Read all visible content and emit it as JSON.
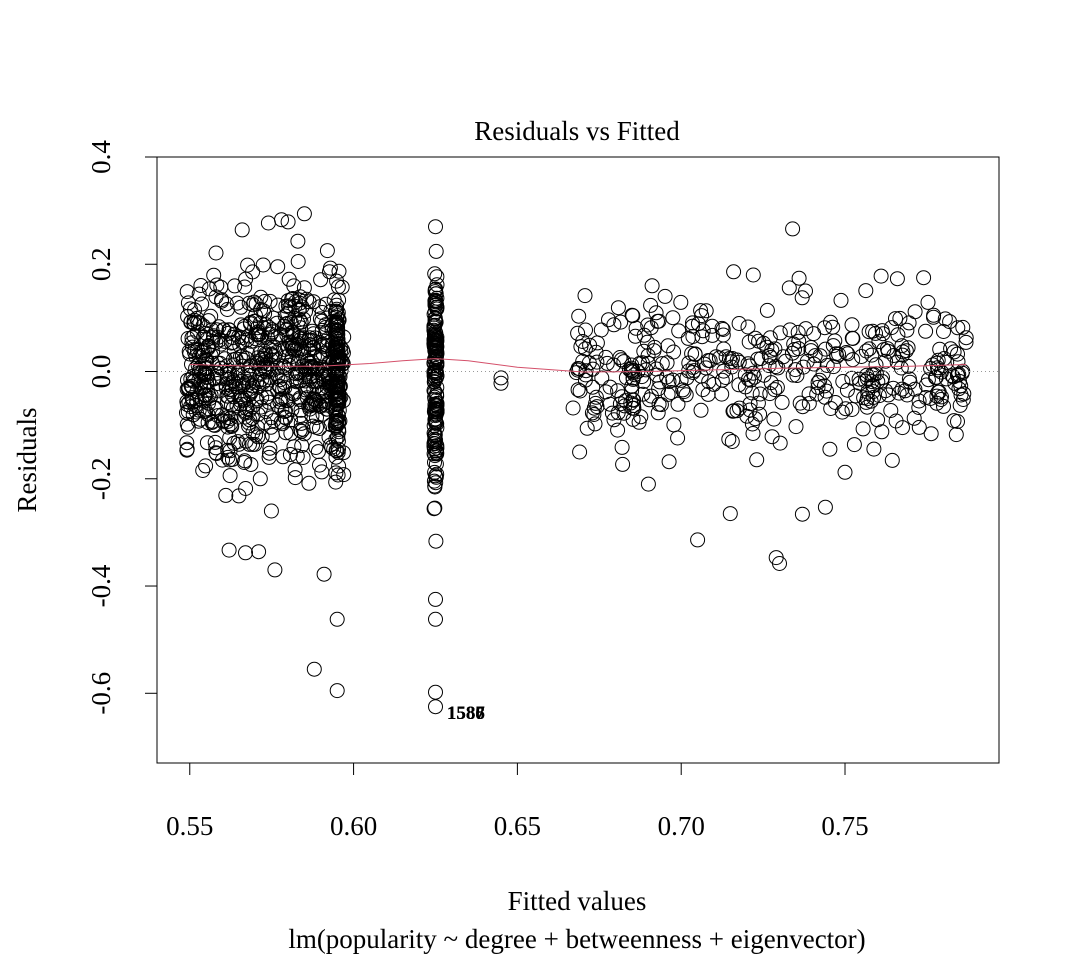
{
  "chart_data": {
    "type": "scatter",
    "title": "Residuals vs Fitted",
    "xlabel": "Fitted values",
    "subtitle": "lm(popularity ~ degree + betweenness + eigenvector)",
    "ylabel": "Residuals",
    "xlim": [
      0.54,
      0.797
    ],
    "ylim": [
      -0.73,
      0.4
    ],
    "x_ticks": [
      0.55,
      0.6,
      0.65,
      0.7,
      0.75
    ],
    "x_tick_labels": [
      "0.55",
      "0.60",
      "0.65",
      "0.70",
      "0.75"
    ],
    "y_ticks": [
      -0.6,
      -0.4,
      -0.2,
      0.0,
      0.2,
      0.4
    ],
    "y_tick_labels": [
      "-0.6",
      "-0.4",
      "-0.2",
      "0.0",
      "0.2",
      "0.4"
    ],
    "reference_line": {
      "y": 0,
      "style": "dotted",
      "color": "#999999"
    },
    "smoother": {
      "color": "#d4506a",
      "x": [
        0.55,
        0.57,
        0.59,
        0.605,
        0.615,
        0.625,
        0.635,
        0.65,
        0.67,
        0.69,
        0.71,
        0.73,
        0.75,
        0.77,
        0.787
      ],
      "y": [
        0.013,
        0.01,
        0.01,
        0.015,
        0.02,
        0.024,
        0.02,
        0.008,
        -0.001,
        0.0,
        0.003,
        0.006,
        0.008,
        0.01,
        0.013
      ]
    },
    "outlier_labels": [
      {
        "text": "1586",
        "x": 0.6285,
        "y": -0.637
      },
      {
        "text": "1587",
        "x": 0.6285,
        "y": -0.637
      },
      {
        "text": "1588",
        "x": 0.6285,
        "y": -0.637
      }
    ],
    "point_groups": [
      {
        "name": "g1",
        "x_range": [
          0.549,
          0.597
        ],
        "y_mean": 0.0,
        "y_sd": 0.12,
        "count": 700,
        "y_clip": [
          -0.38,
          0.3
        ]
      },
      {
        "name": "g2",
        "x_range": [
          0.5945,
          0.5955
        ],
        "y_mean": 0.0,
        "y_sd": 0.13,
        "count": 110,
        "y_clip": [
          -0.34,
          0.245
        ]
      },
      {
        "name": "g3",
        "x_range": [
          0.6245,
          0.6255
        ],
        "y_mean": 0.0,
        "y_sd": 0.14,
        "count": 170,
        "y_clip": [
          -0.39,
          0.27
        ]
      },
      {
        "name": "g4",
        "x_range": [
          0.668,
          0.787
        ],
        "y_mean": 0.0,
        "y_sd": 0.09,
        "count": 420,
        "y_clip": [
          -0.27,
          0.185
        ]
      },
      {
        "name": "g5",
        "x_range": [
          0.6845,
          0.6855
        ],
        "y_mean": -0.03,
        "y_sd": 0.05,
        "count": 12,
        "y_clip": [
          -0.12,
          0.03
        ]
      }
    ],
    "points": [
      {
        "x": 0.549,
        "y": -0.077
      },
      {
        "x": 0.553,
        "y": -0.002
      },
      {
        "x": 0.556,
        "y": 0.154
      },
      {
        "x": 0.558,
        "y": 0.221
      },
      {
        "x": 0.561,
        "y": -0.231
      },
      {
        "x": 0.562,
        "y": -0.333
      },
      {
        "x": 0.565,
        "y": -0.232
      },
      {
        "x": 0.566,
        "y": 0.264
      },
      {
        "x": 0.567,
        "y": -0.338
      },
      {
        "x": 0.571,
        "y": -0.336
      },
      {
        "x": 0.574,
        "y": 0.277
      },
      {
        "x": 0.576,
        "y": -0.37
      },
      {
        "x": 0.578,
        "y": 0.283
      },
      {
        "x": 0.58,
        "y": 0.279
      },
      {
        "x": 0.583,
        "y": 0.243
      },
      {
        "x": 0.585,
        "y": 0.294
      },
      {
        "x": 0.588,
        "y": -0.555
      },
      {
        "x": 0.591,
        "y": -0.378
      },
      {
        "x": 0.595,
        "y": -0.462
      },
      {
        "x": 0.595,
        "y": -0.595
      },
      {
        "x": 0.625,
        "y": -0.462
      },
      {
        "x": 0.625,
        "y": -0.425
      },
      {
        "x": 0.625,
        "y": -0.598
      },
      {
        "x": 0.625,
        "y": -0.625
      },
      {
        "x": 0.625,
        "y": 0.27
      },
      {
        "x": 0.645,
        "y": -0.012
      },
      {
        "x": 0.645,
        "y": -0.022
      },
      {
        "x": 0.667,
        "y": -0.068
      },
      {
        "x": 0.669,
        "y": -0.15
      },
      {
        "x": 0.674,
        "y": 0.036
      },
      {
        "x": 0.677,
        "y": -0.038
      },
      {
        "x": 0.685,
        "y": 0.105
      },
      {
        "x": 0.69,
        "y": -0.21
      },
      {
        "x": 0.705,
        "y": -0.314
      },
      {
        "x": 0.715,
        "y": -0.265
      },
      {
        "x": 0.716,
        "y": 0.186
      },
      {
        "x": 0.722,
        "y": 0.18
      },
      {
        "x": 0.729,
        "y": -0.347
      },
      {
        "x": 0.73,
        "y": -0.358
      },
      {
        "x": 0.733,
        "y": 0.156
      },
      {
        "x": 0.734,
        "y": 0.266
      },
      {
        "x": 0.736,
        "y": 0.174
      },
      {
        "x": 0.737,
        "y": -0.266
      },
      {
        "x": 0.744,
        "y": -0.253
      },
      {
        "x": 0.75,
        "y": -0.188
      },
      {
        "x": 0.761,
        "y": 0.178
      },
      {
        "x": 0.766,
        "y": 0.173
      },
      {
        "x": 0.774,
        "y": 0.175
      },
      {
        "x": 0.777,
        "y": 0.101
      },
      {
        "x": 0.787,
        "y": 0.063
      }
    ]
  }
}
